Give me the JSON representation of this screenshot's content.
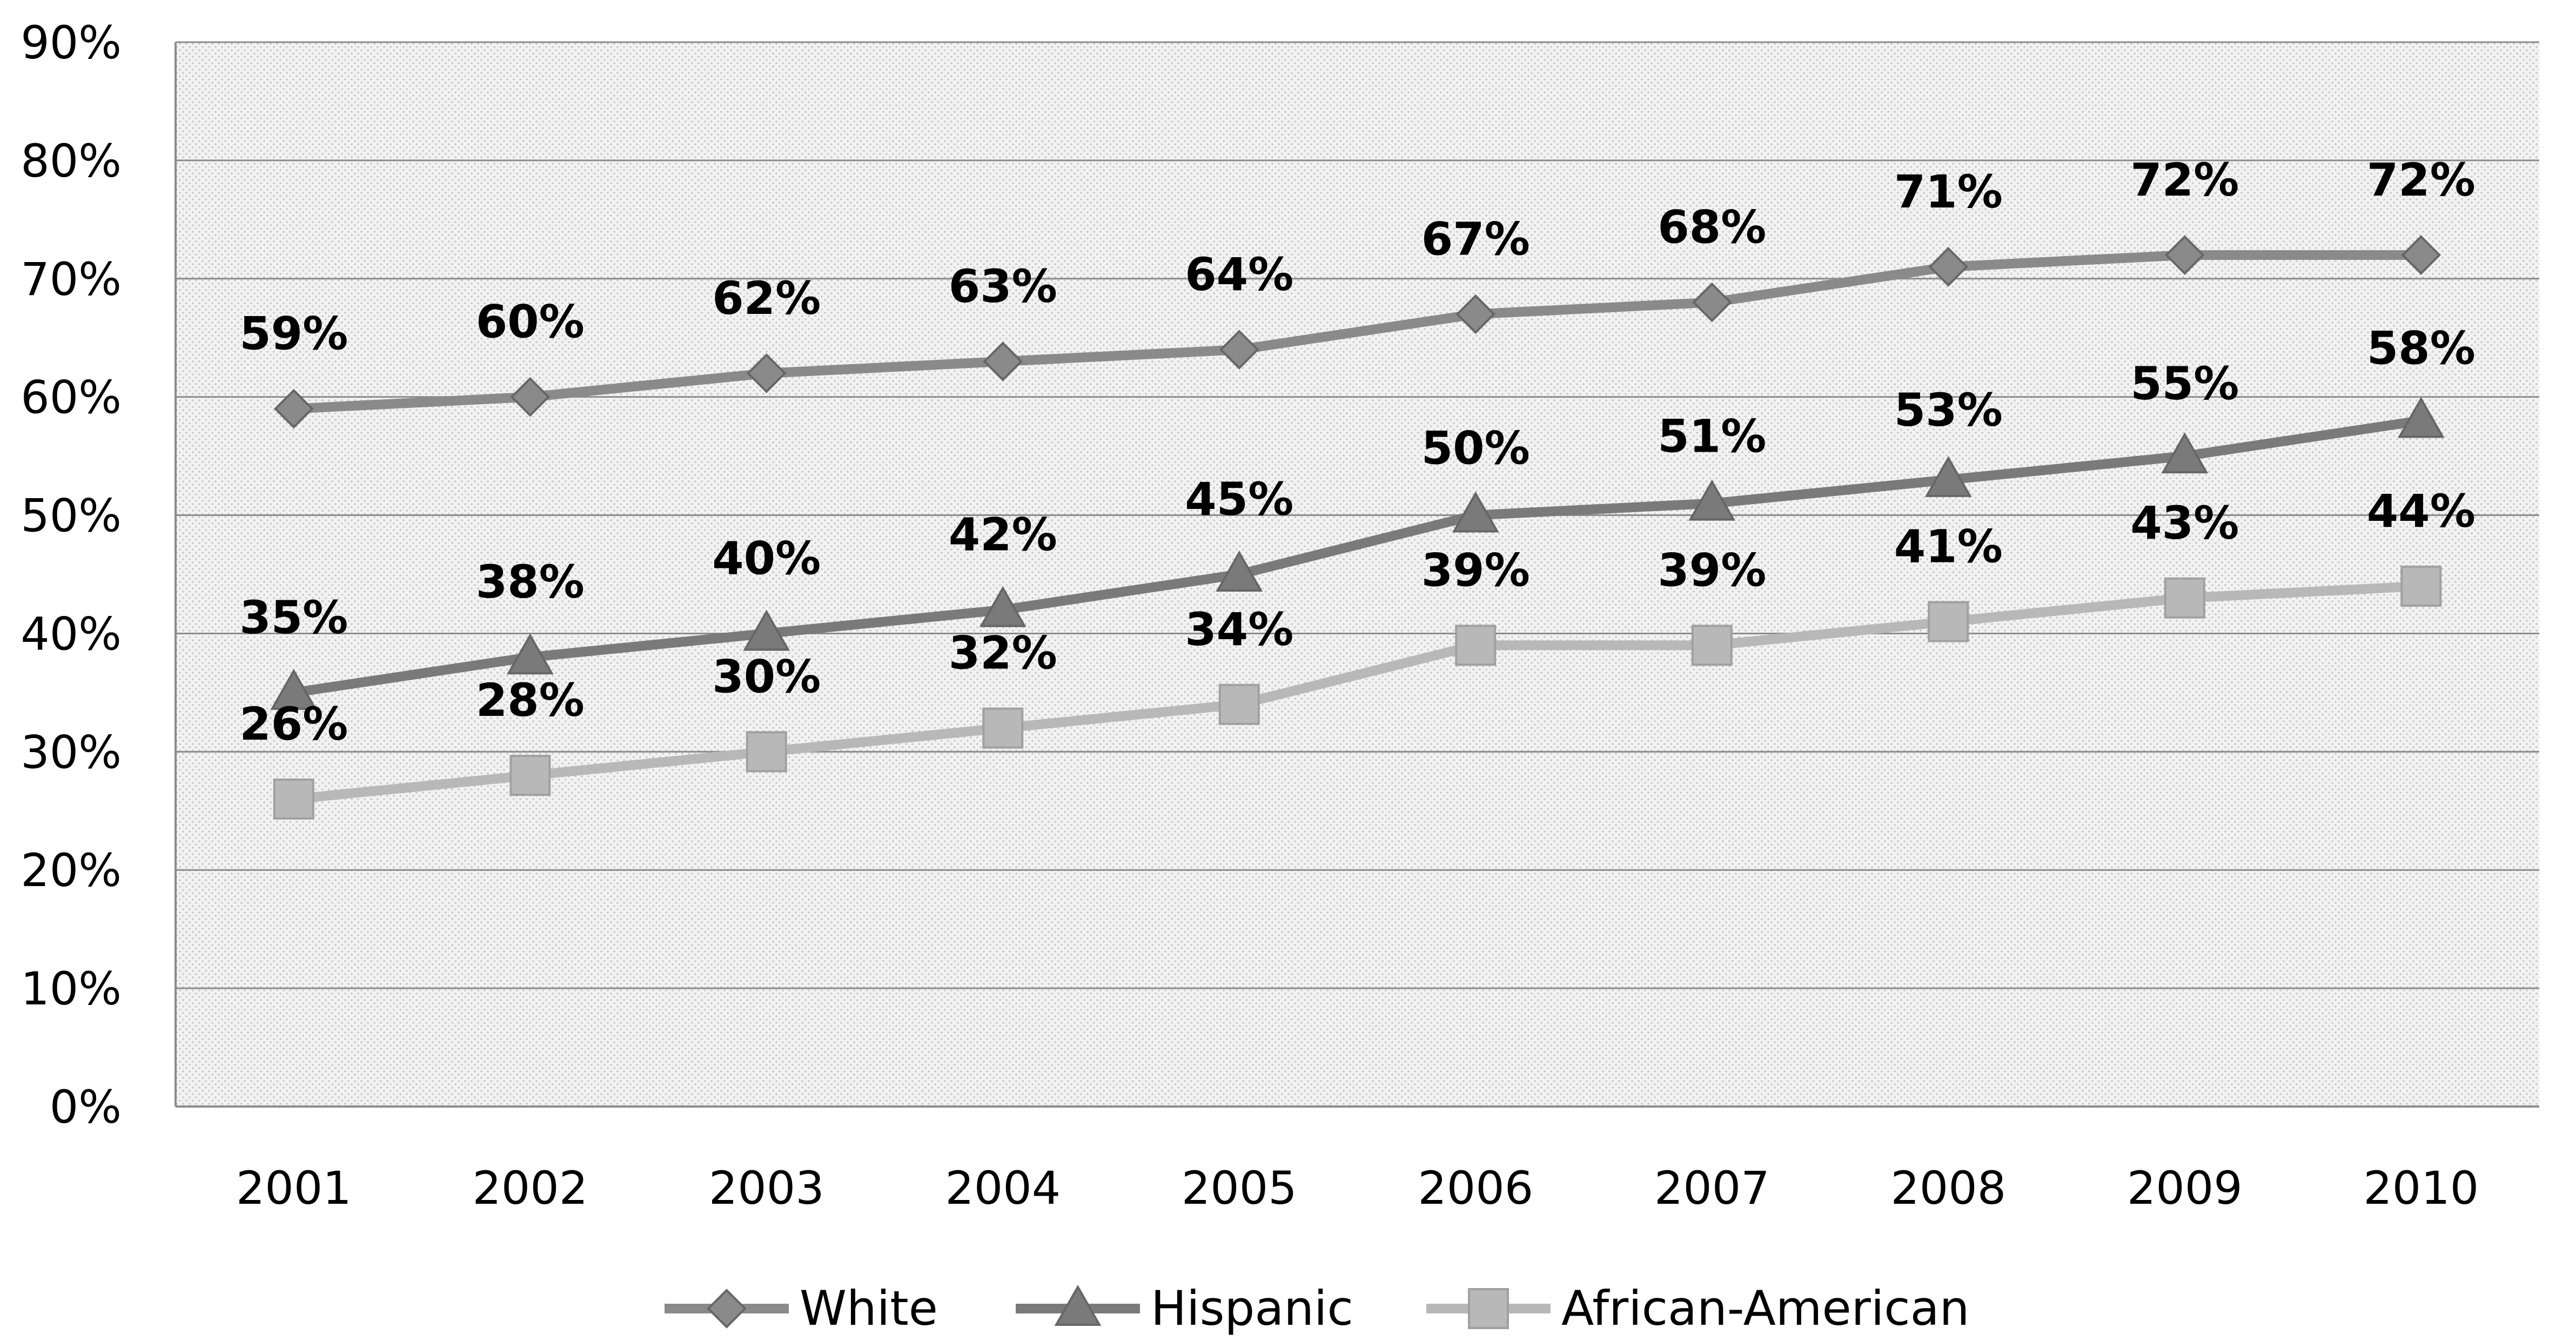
{
  "chart_data": {
    "type": "line",
    "categories": [
      "2001",
      "2002",
      "2003",
      "2004",
      "2005",
      "2006",
      "2007",
      "2008",
      "2009",
      "2010"
    ],
    "ylim": [
      0,
      90
    ],
    "yticks": [
      "0%",
      "10%",
      "20%",
      "30%",
      "40%",
      "50%",
      "60%",
      "70%",
      "80%",
      "90%"
    ],
    "grid": true,
    "legend_position": "bottom",
    "series": [
      {
        "name": "White",
        "marker": "diamond",
        "color": "#8a8a8a",
        "values": [
          59,
          60,
          62,
          63,
          64,
          67,
          68,
          71,
          72,
          72
        ],
        "labels": [
          "59%",
          "60%",
          "62%",
          "63%",
          "64%",
          "67%",
          "68%",
          "71%",
          "72%",
          "72%"
        ]
      },
      {
        "name": "Hispanic",
        "marker": "triangle",
        "color": "#7a7a7a",
        "values": [
          35,
          38,
          40,
          42,
          45,
          50,
          51,
          53,
          55,
          58
        ],
        "labels": [
          "35%",
          "38%",
          "40%",
          "42%",
          "45%",
          "50%",
          "51%",
          "53%",
          "55%",
          "58%"
        ]
      },
      {
        "name": "African-American",
        "marker": "square",
        "color": "#b8b8b8",
        "values": [
          26,
          28,
          30,
          32,
          34,
          39,
          39,
          41,
          43,
          44
        ],
        "labels": [
          "26%",
          "28%",
          "30%",
          "32%",
          "34%",
          "39%",
          "39%",
          "41%",
          "43%",
          "44%"
        ]
      }
    ]
  }
}
